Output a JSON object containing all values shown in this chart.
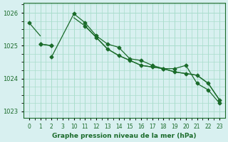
{
  "bg_color": "#d8f0f0",
  "grid_color": "#aaddcc",
  "line_color": "#1a6b2a",
  "title": "Graphe pression niveau de la mer (hPa)",
  "xvals": [
    0,
    1,
    2,
    3,
    10,
    11,
    12,
    13,
    14,
    15,
    16,
    17,
    18,
    19,
    20,
    21,
    22,
    23
  ],
  "line1_y": [
    1025.7,
    1025.3,
    null,
    null,
    1025.85,
    1025.6,
    1025.25,
    1024.9,
    1024.7,
    1024.55,
    1024.4,
    1024.35,
    1024.3,
    1024.2,
    1024.15,
    1024.1,
    1023.85,
    1023.35
  ],
  "line2_y": [
    null,
    1025.05,
    1025.0,
    null,
    null,
    null,
    null,
    null,
    null,
    null,
    null,
    null,
    null,
    null,
    null,
    null,
    null,
    null
  ],
  "line3_y": [
    null,
    null,
    1024.65,
    null,
    null,
    null,
    null,
    null,
    null,
    null,
    null,
    null,
    null,
    null,
    null,
    null,
    null,
    null
  ],
  "line4_y": [
    null,
    null,
    null,
    null,
    1025.97,
    1025.7,
    1025.3,
    1025.05,
    1024.95,
    1024.6,
    1024.55,
    1024.4,
    1024.3,
    1024.3,
    1024.4,
    1023.85,
    1023.65,
    1023.25
  ],
  "line5_y": [
    null,
    1025.05,
    1025.0,
    null,
    null,
    1025.6,
    1025.25,
    1024.9,
    1024.7,
    1024.55,
    1024.4,
    1024.35,
    1024.3,
    1024.2,
    1024.15,
    1024.1,
    1023.85,
    1023.35
  ],
  "tick_labels": [
    "0",
    "1",
    "2",
    "3",
    "10",
    "11",
    "12",
    "13",
    "14",
    "15",
    "16",
    "17",
    "18",
    "19",
    "20",
    "21",
    "22",
    "23"
  ],
  "ylim": [
    1022.8,
    1026.3
  ],
  "yticks": [
    1023,
    1024,
    1025,
    1026
  ]
}
